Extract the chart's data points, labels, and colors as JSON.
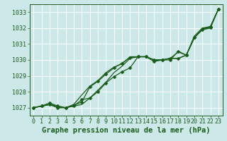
{
  "xlabel": "Graphe pression niveau de la mer (hPa)",
  "xlim": [
    -0.5,
    23.5
  ],
  "ylim": [
    1026.5,
    1033.5
  ],
  "yticks": [
    1027,
    1028,
    1029,
    1030,
    1031,
    1032,
    1033
  ],
  "xticks": [
    0,
    1,
    2,
    3,
    4,
    5,
    6,
    7,
    8,
    9,
    10,
    11,
    12,
    13,
    14,
    15,
    16,
    17,
    18,
    19,
    20,
    21,
    22,
    23
  ],
  "bg_color": "#cce8e8",
  "grid_color": "#ffffff",
  "line_color": "#1a5c1a",
  "marker_color": "#1a5c1a",
  "series": [
    [
      1027.0,
      1027.1,
      1027.2,
      1027.1,
      1027.0,
      1027.1,
      1027.2,
      1027.6,
      1028.1,
      1028.6,
      1029.2,
      1029.6,
      1030.1,
      1030.2,
      1030.2,
      1030.0,
      1030.0,
      1030.1,
      1030.1,
      1030.3,
      1031.4,
      1031.9,
      1032.0,
      1033.2
    ],
    [
      1027.0,
      1027.1,
      1027.3,
      1027.1,
      1027.0,
      1027.15,
      1027.35,
      1028.3,
      1028.65,
      1029.1,
      1029.5,
      1029.8,
      1030.15,
      1030.2,
      1030.2,
      1030.0,
      1030.0,
      1030.0,
      1030.55,
      1030.3,
      1031.4,
      1031.95,
      1032.1,
      1033.2
    ],
    [
      1027.0,
      1027.1,
      1027.2,
      1027.0,
      1027.0,
      1027.1,
      1027.5,
      1027.6,
      1028.0,
      1028.55,
      1028.95,
      1029.25,
      1029.5,
      1030.2,
      1030.2,
      1029.9,
      1030.0,
      1030.1,
      1030.1,
      1030.3,
      1031.4,
      1031.9,
      1032.05,
      1033.2
    ],
    [
      1027.0,
      1027.1,
      1027.2,
      1027.0,
      1027.0,
      1027.2,
      1027.8,
      1028.35,
      1028.7,
      1029.2,
      1029.55,
      1029.75,
      1030.2,
      1030.2,
      1030.2,
      1030.0,
      1030.0,
      1030.1,
      1030.5,
      1030.3,
      1031.5,
      1032.0,
      1032.1,
      1033.2
    ]
  ],
  "show_markers": [
    false,
    true,
    true,
    false
  ],
  "marker": "D",
  "markersize": 2.5,
  "linewidth": 0.9,
  "xlabel_fontsize": 7.5,
  "tick_fontsize": 6.0,
  "title_color": "#1a5c1a",
  "tick_color": "#1a5c1a",
  "spine_color": "#1a5c1a"
}
